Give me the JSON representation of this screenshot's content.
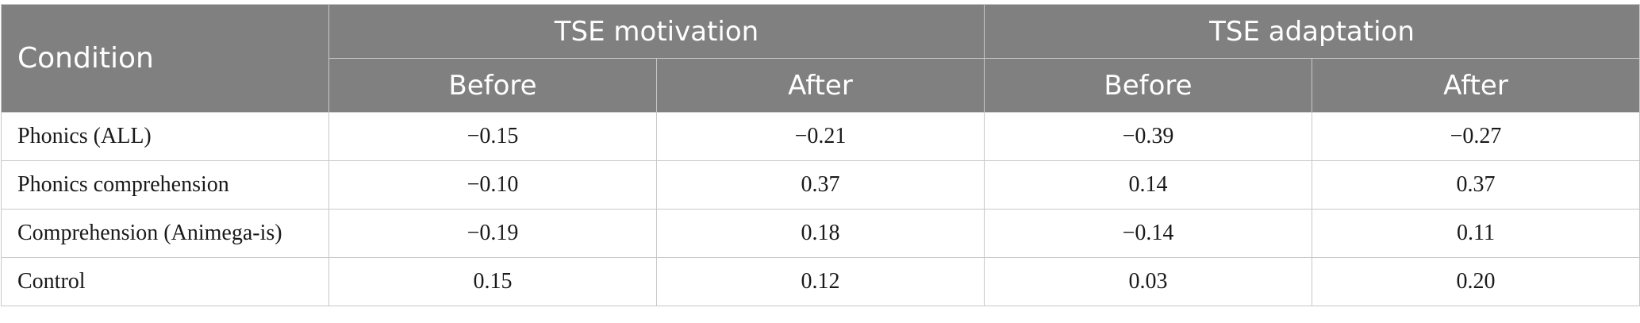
{
  "table": {
    "condition_header": "Condition",
    "groups": [
      {
        "label": "TSE motivation",
        "subheaders": [
          "Before",
          "After"
        ]
      },
      {
        "label": "TSE adaptation",
        "subheaders": [
          "Before",
          "After"
        ]
      }
    ],
    "rows": [
      {
        "condition": "Phonics (ALL)",
        "values": [
          "−0.15",
          "−0.21",
          "−0.39",
          "−0.27"
        ]
      },
      {
        "condition": "Phonics comprehension",
        "values": [
          "−0.10",
          "0.37",
          "0.14",
          "0.37"
        ]
      },
      {
        "condition": "Comprehension (Animega-is)",
        "values": [
          "−0.19",
          "0.18",
          "−0.14",
          "0.11"
        ]
      },
      {
        "condition": "Control",
        "values": [
          "0.15",
          "0.12",
          "0.03",
          "0.20"
        ]
      }
    ]
  }
}
